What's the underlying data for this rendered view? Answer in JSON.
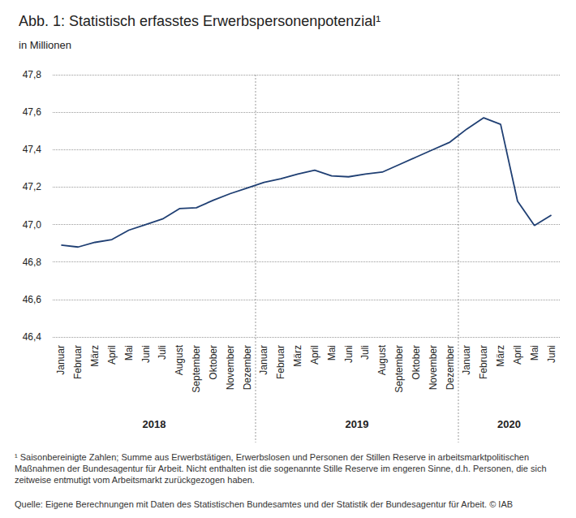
{
  "chart_data": {
    "type": "line",
    "title": "Abb. 1: Statistisch erfasstes Erwerbspersonenpotenzial¹",
    "subtitle": "in Millionen",
    "categories": [
      "Januar",
      "Februar",
      "März",
      "April",
      "Mai",
      "Juni",
      "Juli",
      "August",
      "September",
      "Oktober",
      "November",
      "Dezember",
      "Januar",
      "Februar",
      "März",
      "April",
      "Mai",
      "Juni",
      "Juli",
      "August",
      "September",
      "Oktober",
      "November",
      "Dezember",
      "Januar",
      "Februar",
      "März",
      "April",
      "Mai",
      "Juni"
    ],
    "groups": [
      {
        "label": "2018",
        "count": 12
      },
      {
        "label": "2019",
        "count": 12
      },
      {
        "label": "2020",
        "count": 6
      }
    ],
    "values": [
      46.89,
      46.88,
      46.905,
      46.92,
      46.97,
      47.0,
      47.03,
      47.085,
      47.09,
      47.13,
      47.165,
      47.195,
      47.225,
      47.245,
      47.27,
      47.29,
      47.26,
      47.255,
      47.27,
      47.28,
      47.32,
      47.36,
      47.4,
      47.44,
      47.51,
      47.57,
      47.535,
      47.125,
      46.995,
      47.05
    ],
    "color": "#1f3f73",
    "ylim": [
      46.4,
      47.8
    ],
    "yticks": [
      {
        "value": 46.4,
        "label": "46,4"
      },
      {
        "value": 46.6,
        "label": "46,6"
      },
      {
        "value": 46.8,
        "label": "46,8"
      },
      {
        "value": 47.0,
        "label": "47,0"
      },
      {
        "value": 47.2,
        "label": "47,2"
      },
      {
        "value": 47.4,
        "label": "47,4"
      },
      {
        "value": 47.6,
        "label": "47,6"
      },
      {
        "value": 47.8,
        "label": "47,8"
      }
    ],
    "grid": true,
    "footnote": "¹ Saisonbereinigte Zahlen; Summe aus Erwerbstätigen, Erwerbslosen und Personen der Stillen Reserve in arbeitsmarktpolitischen Maßnahmen der Bundesagentur für Arbeit. Nicht enthalten ist die sogenannte Stille Reserve im engeren Sinne, d.h. Personen, die sich zeitweise entmutigt vom Arbeitsmarkt zurückgezogen haben.",
    "source": "Quelle: Eigene Berechnungen mit Daten des Statistischen Bundesamtes und der Statistik der Bundesagentur für Arbeit. © IAB"
  }
}
